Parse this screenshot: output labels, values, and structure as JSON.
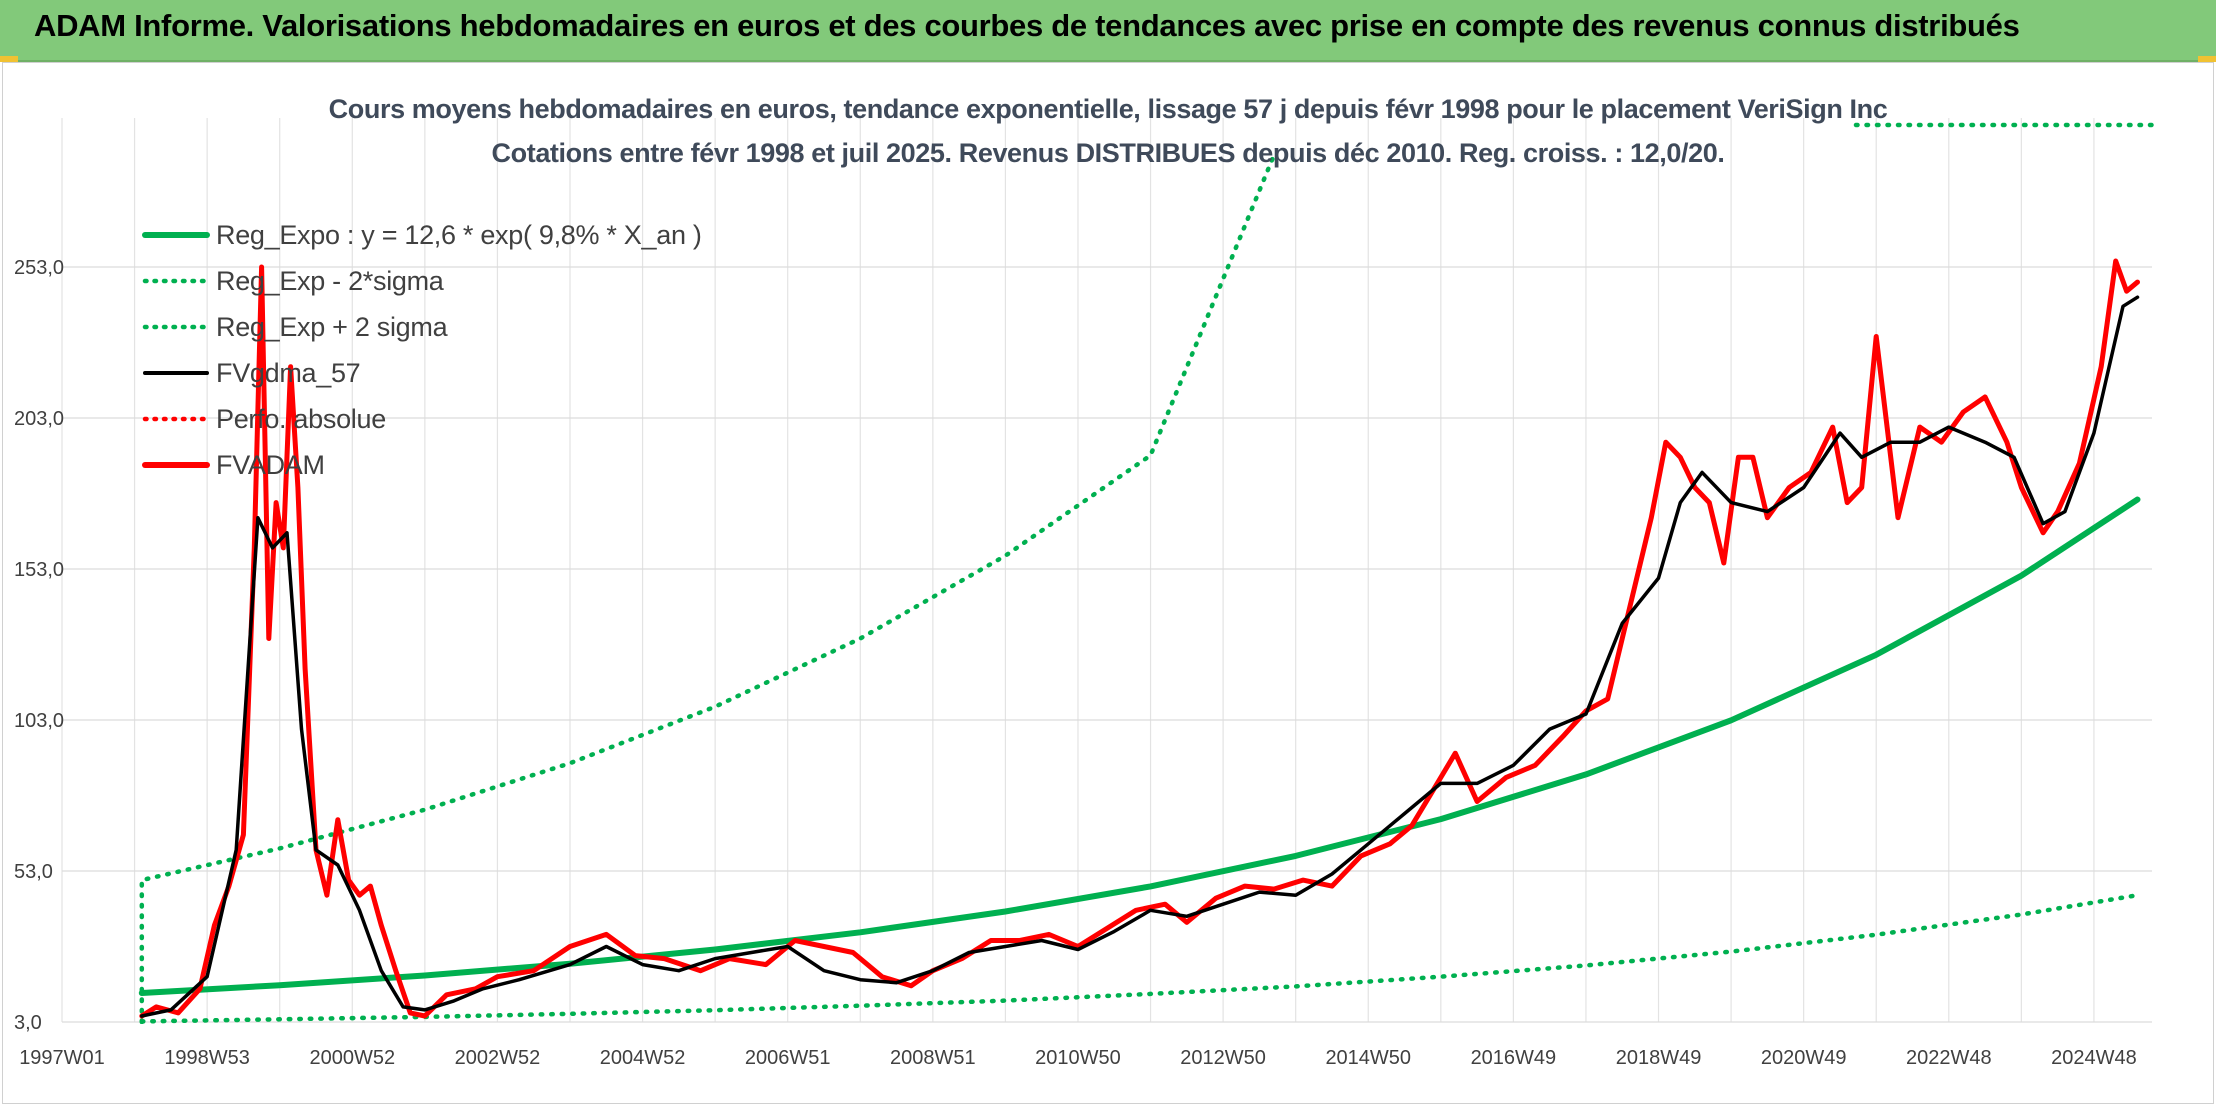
{
  "header": {
    "title": "ADAM Informe. Valorisations hebdomadaires en euros et des courbes de tendances avec prise en compte des revenus connus distribués"
  },
  "chart_data": {
    "type": "line",
    "title": "Cours moyens hebdomadaires en euros, tendance exponentielle, lissage 57 j depuis févr 1998 pour le placement VeriSign Inc",
    "subtitle": "Cotations entre févr 1998 et juil 2025. Revenus DISTRIBUES depuis déc 2010. Reg. croiss. : 12,0/20.",
    "x_tick_labels": [
      "1997W01",
      "1998W53",
      "2000W52",
      "2002W52",
      "2004W52",
      "2006W51",
      "2008W51",
      "2010W50",
      "2012W50",
      "2014W50",
      "2016W49",
      "2018W49",
      "2020W49",
      "2022W48",
      "2024W48"
    ],
    "y_tick_labels": [
      "3,0",
      "53,0",
      "103,0",
      "153,0",
      "203,0",
      "253,0"
    ],
    "ylim": [
      3,
      290
    ],
    "xlim": [
      1997.0,
      2025.8
    ],
    "grid": true,
    "legend_position": "top-left",
    "colors": {
      "reg_expo": "#00b050",
      "sigma": "#00b050",
      "fvgdma": "#000000",
      "perfo": "#ff0000",
      "fvadam": "#ff0000"
    },
    "series": [
      {
        "name": "Reg_Expo : y = 12,6 * exp( 9,8% *  X_an )",
        "style": "solid-thick",
        "x": [
          1998.1,
          2000,
          2002,
          2004,
          2006,
          2008,
          2010,
          2012,
          2014,
          2016,
          2018,
          2020,
          2022,
          2024,
          2025.6
        ],
        "values": [
          12.6,
          15.2,
          18.4,
          22.3,
          27.0,
          32.7,
          39.6,
          47.9,
          58.0,
          70.2,
          85.0,
          102.9,
          124.6,
          150.8,
          176.0
        ]
      },
      {
        "name": "Reg_Exp - 2*sigma",
        "style": "dotted",
        "x": [
          1998.1,
          2000,
          2002,
          2004,
          2006,
          2008,
          2010,
          2012,
          2014,
          2016,
          2018,
          2020,
          2022,
          2024,
          2025.6
        ],
        "values": [
          3.2,
          3.9,
          4.7,
          5.7,
          6.9,
          8.4,
          10.1,
          12.3,
          14.8,
          18.0,
          21.7,
          26.3,
          31.9,
          38.6,
          45.0
        ]
      },
      {
        "name": "Reg_Exp + 2 sigma",
        "style": "dotted",
        "x": [
          1998.1,
          1998.1,
          2000,
          2002,
          2004,
          2006,
          2008,
          2010,
          2012,
          2013.7
        ],
        "values": [
          3,
          50.0,
          60.5,
          73.3,
          88.7,
          107.4,
          130.0,
          157.4,
          190.6,
          290.0
        ]
      },
      {
        "name": "FVgdma_57",
        "style": "solid",
        "x": [
          1998.1,
          1998.5,
          1999.0,
          1999.4,
          1999.7,
          1999.9,
          2000.1,
          2000.3,
          2000.5,
          2000.8,
          2001.1,
          2001.4,
          2001.7,
          2002.0,
          2002.4,
          2002.8,
          2003.3,
          2004.0,
          2004.5,
          2005.0,
          2005.5,
          2006.0,
          2006.5,
          2007.0,
          2007.5,
          2008.0,
          2008.5,
          2009.0,
          2009.5,
          2010.0,
          2010.5,
          2011.0,
          2011.5,
          2012.0,
          2012.5,
          2013.0,
          2013.5,
          2014.0,
          2014.5,
          2015.0,
          2015.5,
          2016.0,
          2016.5,
          2017.0,
          2017.5,
          2018.0,
          2018.5,
          2019.0,
          2019.3,
          2019.6,
          2020.0,
          2020.5,
          2021.0,
          2021.5,
          2021.8,
          2022.2,
          2022.6,
          2023.0,
          2023.5,
          2023.9,
          2024.3,
          2024.6,
          2025.0,
          2025.4,
          2025.6
        ],
        "values": [
          5,
          7,
          18,
          60,
          170,
          160,
          165,
          100,
          60,
          55,
          40,
          20,
          8,
          7,
          10,
          14,
          17,
          22,
          28,
          22,
          20,
          24,
          26,
          28,
          20,
          17,
          16,
          20,
          26,
          28,
          30,
          27,
          33,
          40,
          38,
          42,
          46,
          45,
          52,
          62,
          72,
          82,
          82,
          88,
          100,
          105,
          135,
          150,
          175,
          185,
          175,
          172,
          180,
          198,
          190,
          195,
          195,
          200,
          195,
          190,
          168,
          172,
          198,
          240,
          243
        ]
      },
      {
        "name": "Perfo. absolue",
        "style": "dotted",
        "x": [],
        "values": []
      },
      {
        "name": "FVADAM",
        "style": "solid-thick",
        "x": [
          1998.1,
          1998.3,
          1998.6,
          1998.9,
          1999.1,
          1999.3,
          1999.5,
          1999.65,
          1999.75,
          1999.85,
          1999.95,
          2000.05,
          2000.15,
          2000.25,
          2000.35,
          2000.5,
          2000.65,
          2000.8,
          2000.95,
          2001.1,
          2001.25,
          2001.4,
          2001.6,
          2001.8,
          2002.0,
          2002.3,
          2002.7,
          2003.0,
          2003.5,
          2004.0,
          2004.5,
          2004.9,
          2005.3,
          2005.8,
          2006.2,
          2006.7,
          2007.1,
          2007.5,
          2007.9,
          2008.3,
          2008.7,
          2009.0,
          2009.4,
          2009.8,
          2010.2,
          2010.6,
          2011.0,
          2011.4,
          2011.8,
          2012.2,
          2012.5,
          2012.9,
          2013.3,
          2013.7,
          2014.1,
          2014.5,
          2014.9,
          2015.3,
          2015.6,
          2015.9,
          2016.2,
          2016.5,
          2016.9,
          2017.3,
          2017.7,
          2018.0,
          2018.3,
          2018.6,
          2018.9,
          2019.1,
          2019.3,
          2019.5,
          2019.7,
          2019.9,
          2020.1,
          2020.3,
          2020.5,
          2020.8,
          2021.1,
          2021.4,
          2021.6,
          2021.8,
          2022.0,
          2022.3,
          2022.6,
          2022.9,
          2023.2,
          2023.5,
          2023.8,
          2024.0,
          2024.3,
          2024.5,
          2024.8,
          2025.1,
          2025.3,
          2025.45,
          2025.6
        ],
        "values": [
          5,
          8,
          6,
          14,
          35,
          48,
          65,
          160,
          253,
          130,
          175,
          160,
          220,
          180,
          120,
          60,
          45,
          70,
          50,
          45,
          48,
          35,
          20,
          6,
          5,
          12,
          14,
          18,
          20,
          28,
          32,
          25,
          24,
          20,
          24,
          22,
          30,
          28,
          26,
          18,
          15,
          20,
          24,
          30,
          30,
          32,
          28,
          34,
          40,
          42,
          36,
          44,
          48,
          47,
          50,
          48,
          58,
          62,
          68,
          80,
          92,
          76,
          84,
          88,
          98,
          106,
          110,
          140,
          170,
          195,
          190,
          180,
          175,
          155,
          190,
          190,
          170,
          180,
          185,
          200,
          175,
          180,
          230,
          170,
          200,
          195,
          205,
          210,
          195,
          180,
          165,
          172,
          188,
          220,
          255,
          245,
          248
        ]
      }
    ]
  },
  "legend": [
    {
      "label": "Reg_Expo : y = 12,6 * exp( 9,8% *  X_an )",
      "style": "solid-thick",
      "color": "#00b050"
    },
    {
      "label": "Reg_Exp - 2*sigma",
      "style": "dotted",
      "color": "#00b050"
    },
    {
      "label": "Reg_Exp + 2 sigma",
      "style": "dotted",
      "color": "#00b050"
    },
    {
      "label": "FVgdma_57",
      "style": "solid",
      "color": "#000000"
    },
    {
      "label": "Perfo. absolue",
      "style": "dotted",
      "color": "#ff0000"
    },
    {
      "label": "FVADAM",
      "style": "solid-thick",
      "color": "#ff0000"
    }
  ]
}
